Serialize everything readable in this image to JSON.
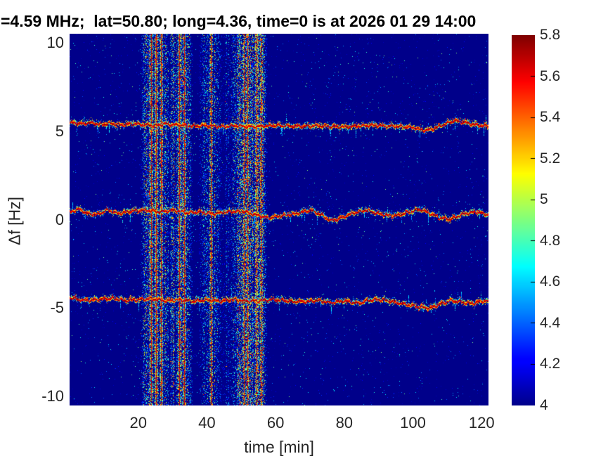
{
  "figure": {
    "title": "=4.59 MHz;  lat=50.80; long=4.36, time=0 is at 2026 01 29 14:00",
    "x_axis": {
      "label": "time [min]"
    },
    "y_axis": {
      "label": "Δf [Hz]"
    }
  },
  "colors": {
    "page_background": "#ffffff",
    "tick_label": "#262626",
    "title_text": "#000000",
    "plot_background_navy": "#00008b"
  },
  "chart_data": {
    "type": "heatmap",
    "subtype": "doppler-spectrogram",
    "title": "=4.59 MHz;  lat=50.80; long=4.36, time=0 is at 2026 01 29 14:00",
    "xlabel": "time [min]",
    "ylabel": "Δf [Hz]",
    "xlim": [
      0,
      122
    ],
    "ylim": [
      -10.5,
      10.5
    ],
    "x_ticks": [
      20,
      40,
      60,
      80,
      100,
      120
    ],
    "y_ticks": [
      10,
      5,
      0,
      -5,
      -10
    ],
    "grid": false,
    "legend": "none",
    "colormap": "jet",
    "background_value": 4.0,
    "colorbar": {
      "position": "right",
      "range": [
        4,
        5.8
      ],
      "ticks": [
        5.8,
        5.6,
        5.4,
        5.2,
        5,
        4.8,
        4.6,
        4.4,
        4.2,
        4
      ]
    },
    "doppler_traces": [
      {
        "name": "upper-trace",
        "approx_level_hz": 5.35,
        "points": [
          [
            0,
            5.5
          ],
          [
            3,
            5.42
          ],
          [
            6,
            5.5
          ],
          [
            9,
            5.38
          ],
          [
            12,
            5.45
          ],
          [
            15,
            5.35
          ],
          [
            18,
            5.42
          ],
          [
            22,
            5.38
          ],
          [
            25,
            5.32
          ],
          [
            28,
            5.42
          ],
          [
            32,
            5.35
          ],
          [
            36,
            5.3
          ],
          [
            40,
            5.32
          ],
          [
            44,
            5.26
          ],
          [
            48,
            5.32
          ],
          [
            52,
            5.26
          ],
          [
            56,
            5.3
          ],
          [
            60,
            5.34
          ],
          [
            64,
            5.3
          ],
          [
            68,
            5.28
          ],
          [
            72,
            5.32
          ],
          [
            76,
            5.28
          ],
          [
            80,
            5.25
          ],
          [
            84,
            5.3
          ],
          [
            88,
            5.35
          ],
          [
            92,
            5.3
          ],
          [
            96,
            5.28
          ],
          [
            100,
            5.22
          ],
          [
            103,
            5.05
          ],
          [
            106,
            5.15
          ],
          [
            109,
            5.4
          ],
          [
            112,
            5.6
          ],
          [
            115,
            5.5
          ],
          [
            118,
            5.38
          ],
          [
            120,
            5.32
          ],
          [
            122,
            5.3
          ]
        ]
      },
      {
        "name": "center-trace",
        "approx_level_hz": 0.35,
        "points": [
          [
            0,
            0.45
          ],
          [
            3,
            0.6
          ],
          [
            5,
            0.35
          ],
          [
            8,
            0.3
          ],
          [
            11,
            0.55
          ],
          [
            14,
            0.35
          ],
          [
            18,
            0.5
          ],
          [
            22,
            0.55
          ],
          [
            26,
            0.45
          ],
          [
            30,
            0.55
          ],
          [
            34,
            0.4
          ],
          [
            38,
            0.45
          ],
          [
            42,
            0.35
          ],
          [
            46,
            0.45
          ],
          [
            50,
            0.5
          ],
          [
            54,
            0.3
          ],
          [
            58,
            0.1
          ],
          [
            62,
            0.25
          ],
          [
            66,
            0.35
          ],
          [
            70,
            0.55
          ],
          [
            73,
            0.3
          ],
          [
            76,
            -0.05
          ],
          [
            79,
            0.1
          ],
          [
            82,
            0.35
          ],
          [
            86,
            0.55
          ],
          [
            90,
            0.35
          ],
          [
            94,
            0.2
          ],
          [
            98,
            0.4
          ],
          [
            102,
            0.6
          ],
          [
            105,
            0.35
          ],
          [
            108,
            0.1
          ],
          [
            111,
            0.05
          ],
          [
            114,
            0.3
          ],
          [
            118,
            0.45
          ],
          [
            122,
            0.3
          ]
        ]
      },
      {
        "name": "lower-trace",
        "approx_level_hz": -4.6,
        "points": [
          [
            0,
            -4.4
          ],
          [
            4,
            -4.55
          ],
          [
            8,
            -4.5
          ],
          [
            12,
            -4.42
          ],
          [
            16,
            -4.55
          ],
          [
            20,
            -4.5
          ],
          [
            24,
            -4.45
          ],
          [
            28,
            -4.58
          ],
          [
            32,
            -4.5
          ],
          [
            36,
            -4.6
          ],
          [
            40,
            -4.52
          ],
          [
            44,
            -4.58
          ],
          [
            48,
            -4.5
          ],
          [
            52,
            -4.6
          ],
          [
            56,
            -4.55
          ],
          [
            60,
            -4.5
          ],
          [
            64,
            -4.6
          ],
          [
            68,
            -4.62
          ],
          [
            72,
            -4.55
          ],
          [
            76,
            -4.68
          ],
          [
            80,
            -4.58
          ],
          [
            84,
            -4.72
          ],
          [
            87,
            -4.55
          ],
          [
            90,
            -4.5
          ],
          [
            94,
            -4.62
          ],
          [
            98,
            -4.78
          ],
          [
            102,
            -4.92
          ],
          [
            105,
            -4.98
          ],
          [
            108,
            -4.75
          ],
          [
            111,
            -4.55
          ],
          [
            114,
            -4.65
          ],
          [
            117,
            -4.72
          ],
          [
            120,
            -4.58
          ],
          [
            122,
            -4.62
          ]
        ]
      }
    ],
    "noise_bands": [
      {
        "t_start": 21.2,
        "t_end": 28.5,
        "intensity": 1.0
      },
      {
        "t_start": 29.2,
        "t_end": 35.3,
        "intensity": 0.85
      },
      {
        "t_start": 38.2,
        "t_end": 43.9,
        "intensity": 0.55
      },
      {
        "t_start": 44.8,
        "t_end": 46.8,
        "intensity": 0.3
      },
      {
        "t_start": 47.2,
        "t_end": 57.0,
        "intensity": 0.95
      }
    ],
    "interference_lines_t": [
      23.7,
      25.2,
      26.6,
      31.9,
      33.4,
      41.1,
      50.8,
      51.8,
      54.5,
      55.7
    ],
    "render": {
      "seed": 1337,
      "bg_speckle_fraction": 0.012
    }
  }
}
